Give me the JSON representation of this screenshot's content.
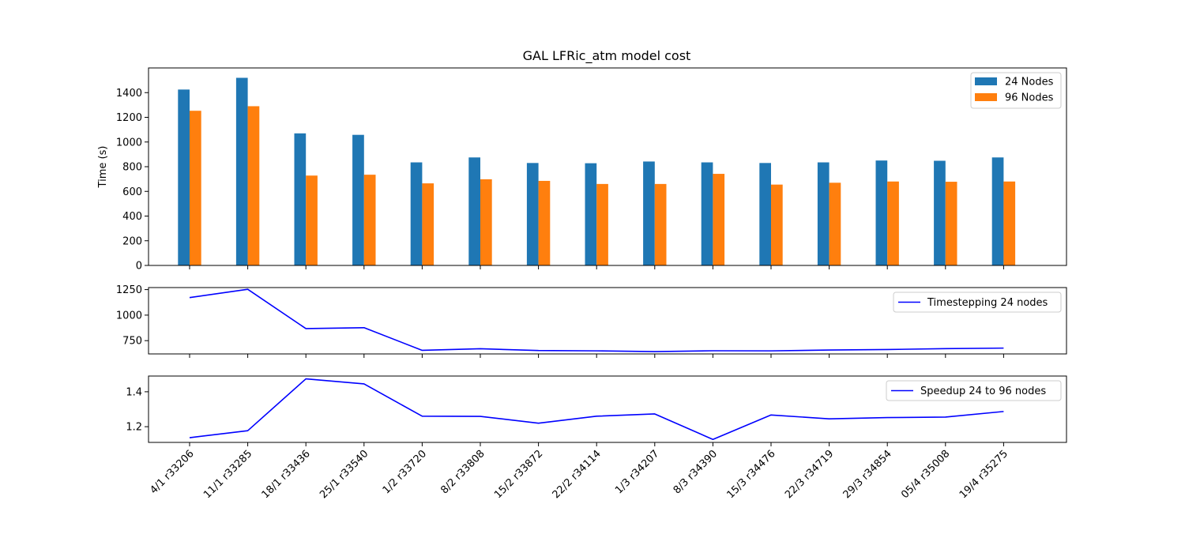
{
  "chart_data": [
    {
      "type": "bar",
      "title": "GAL LFRic_atm model cost",
      "ylabel": "Time (s)",
      "xlabel": "",
      "ylim": [
        0,
        1600
      ],
      "yticks": [
        0,
        200,
        400,
        600,
        800,
        1000,
        1200,
        1400
      ],
      "grid": false,
      "legend_position": "top-right",
      "categories": [
        "4/1 r33206",
        "11/1 r33285",
        "18/1 r33436",
        "25/1 r33540",
        "1/2 r33720",
        "8/2 r33808",
        "15/2 r33872",
        "22/2 r34114",
        "1/3 r34207",
        "8/3 r34390",
        "15/3 r34476",
        "22/3 r34719",
        "29/3 r34854",
        "05/4 r35008",
        "19/4 r35275"
      ],
      "series": [
        {
          "name": "24 Nodes",
          "color": "#1f77b4",
          "values": [
            1425,
            1520,
            1070,
            1058,
            835,
            875,
            830,
            828,
            842,
            835,
            830,
            835,
            850,
            848,
            875
          ]
        },
        {
          "name": "96 Nodes",
          "color": "#ff7f0e",
          "values": [
            1253,
            1290,
            728,
            735,
            665,
            698,
            685,
            660,
            660,
            742,
            655,
            670,
            680,
            678,
            680
          ]
        }
      ]
    },
    {
      "type": "line",
      "ylim": [
        620,
        1270
      ],
      "yticks": [
        750,
        1000,
        1250
      ],
      "grid": false,
      "legend_position": "top-right",
      "series": [
        {
          "name": "Timestepping 24 nodes",
          "color": "#0000ff",
          "values": [
            1172,
            1253,
            868,
            877,
            655,
            671,
            653,
            650,
            643,
            651,
            650,
            658,
            663,
            672,
            677
          ]
        }
      ]
    },
    {
      "type": "line",
      "ylim": [
        1.11,
        1.49
      ],
      "yticks": [
        1.2,
        1.4
      ],
      "grid": false,
      "legend_position": "top-right",
      "series": [
        {
          "name": "Speedup 24 to 96 nodes",
          "color": "#0000ff",
          "values": [
            1.137,
            1.177,
            1.474,
            1.445,
            1.26,
            1.259,
            1.22,
            1.26,
            1.273,
            1.127,
            1.267,
            1.245,
            1.252,
            1.255,
            1.287
          ]
        }
      ]
    }
  ]
}
